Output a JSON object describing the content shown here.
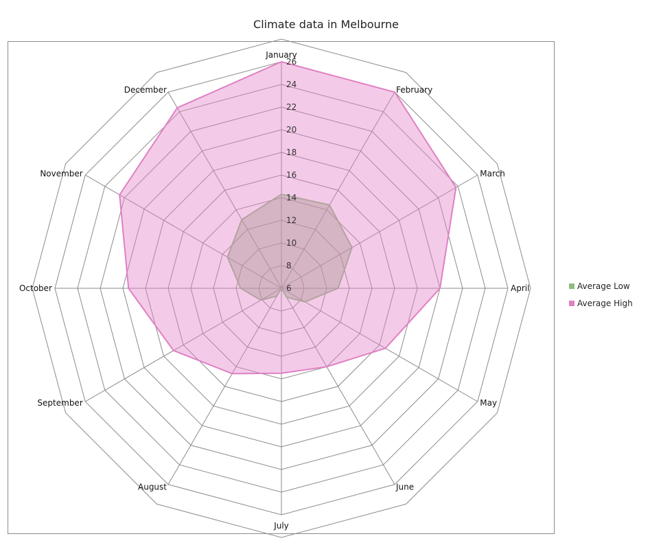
{
  "title": "Climate data in Melbourne",
  "chart_data": {
    "type": "radar",
    "title": "Climate data in Melbourne",
    "categories": [
      "January",
      "February",
      "March",
      "April",
      "May",
      "June",
      "July",
      "August",
      "September",
      "October",
      "November",
      "December"
    ],
    "radial_ticks": [
      "6",
      "8",
      "10",
      "12",
      "14",
      "16",
      "18",
      "20",
      "22",
      "24",
      "26"
    ],
    "rlim": [
      6,
      26
    ],
    "grid": true,
    "legend_position": "right",
    "series": [
      {
        "name": "Average Low",
        "values": [
          14.3,
          14.5,
          13.2,
          11.0,
          8.4,
          6.9,
          6.0,
          6.8,
          8.1,
          9.6,
          11.5,
          13.0
        ],
        "color": "#8fbc7f"
      },
      {
        "name": "Average High",
        "values": [
          26.0,
          26.0,
          23.8,
          20.0,
          16.6,
          14.0,
          13.5,
          14.7,
          17.0,
          19.5,
          22.5,
          24.4
        ],
        "color": "#e07fc4"
      }
    ]
  }
}
